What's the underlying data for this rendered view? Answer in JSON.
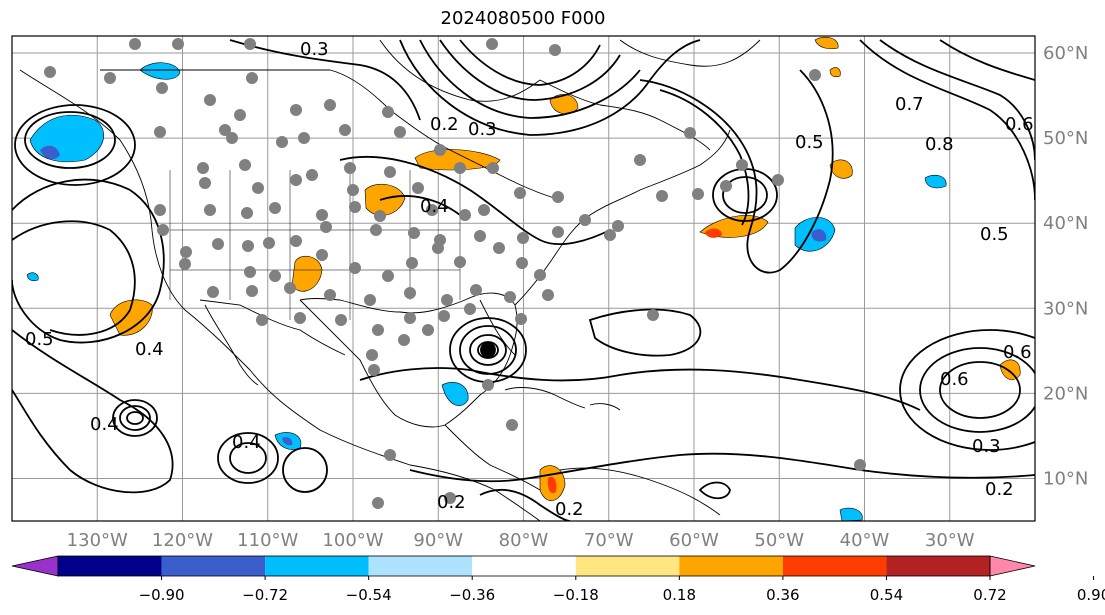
{
  "title": "2024080500 F000",
  "map": {
    "lon_range": [
      -140,
      -20
    ],
    "lat_range": [
      5,
      62
    ],
    "projection": "PlateCarree",
    "grid": true,
    "lon_ticks": [
      "130°W",
      "120°W",
      "110°W",
      "100°W",
      "90°W",
      "80°W",
      "70°W",
      "60°W",
      "50°W",
      "40°W",
      "30°W"
    ],
    "lat_ticks": [
      "60°N",
      "50°N",
      "40°N",
      "30°N",
      "20°N",
      "10°N"
    ],
    "contour_labels": [
      "0.3",
      "0.2",
      "0.3",
      "0.4",
      "0.5",
      "0.4",
      "0.4",
      "0.2",
      "0.2",
      "0.6",
      "0.5",
      "0.6",
      "0.3",
      "0.2",
      "0.7",
      "0.8",
      "0.5",
      "0.6",
      "0.4"
    ],
    "colors": {
      "gridline": "#9a9a9a",
      "coastline": "#000000",
      "contour": "#000000",
      "station_marker": "#808080"
    }
  },
  "colorbar": {
    "orientation": "horizontal",
    "extend": "both",
    "tick_labels": [
      "−0.90",
      "−0.72",
      "−0.54",
      "−0.36",
      "−0.18",
      "0.18",
      "0.36",
      "0.54",
      "0.72",
      "0.90"
    ],
    "colors": [
      "#9932cc",
      "#00008b",
      "#3a5fcd",
      "#00bfff",
      "#aee3ff",
      "#ffffff",
      "#ffe680",
      "#ffa500",
      "#ff3c00",
      "#b22222",
      "#ff88aa"
    ]
  }
}
